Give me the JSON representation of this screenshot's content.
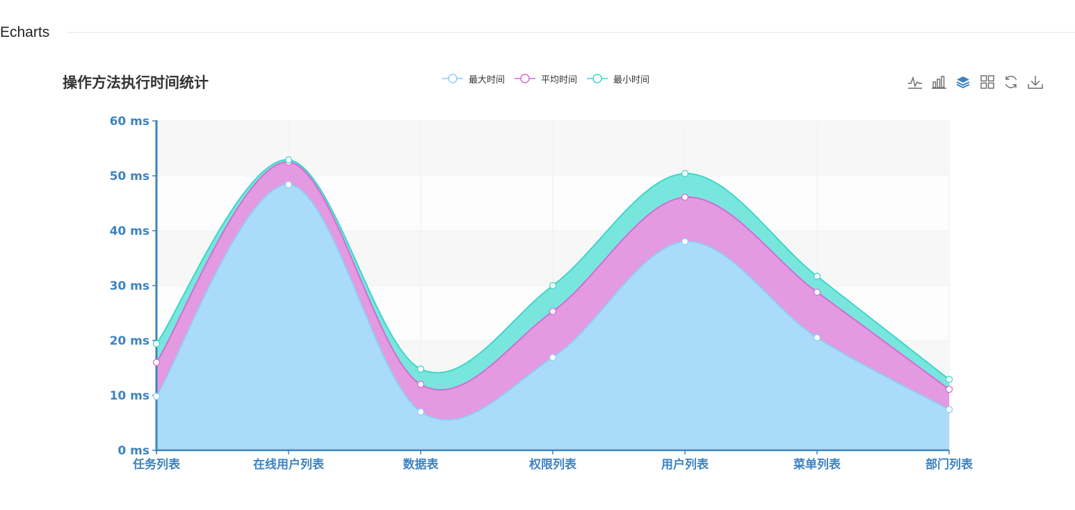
{
  "section": {
    "title": "Echarts"
  },
  "legend": [
    {
      "label": "最大时间",
      "color": "#8ccff5"
    },
    {
      "label": "平均时间",
      "color": "#d36bd4"
    },
    {
      "label": "最小时间",
      "color": "#3dd6c8"
    }
  ],
  "toolbox": [
    {
      "name": "line-chart-icon"
    },
    {
      "name": "bar-chart-icon"
    },
    {
      "name": "stack-icon"
    },
    {
      "name": "tiled-icon"
    },
    {
      "name": "restore-icon"
    },
    {
      "name": "download-icon"
    }
  ],
  "chart_data": {
    "type": "area",
    "title": "操作方法执行时间统计",
    "stacked": true,
    "categories": [
      "任务列表",
      "在线用户列表",
      "数据表",
      "权限列表",
      "用户列表",
      "菜单列表",
      "部门列表"
    ],
    "series": [
      {
        "name": "最大时间",
        "values": [
          9.8,
          48.4,
          7.0,
          16.9,
          38.0,
          20.5,
          7.4
        ],
        "color": "#8ccff5",
        "fill": "#aadcfa"
      },
      {
        "name": "平均时间",
        "values": [
          6.2,
          4.1,
          5.0,
          8.4,
          8.1,
          8.3,
          3.7
        ],
        "color": "#d36bd4",
        "fill": "#e39ae0"
      },
      {
        "name": "最小时间",
        "values": [
          3.4,
          0.4,
          2.8,
          4.7,
          4.3,
          2.9,
          1.8
        ],
        "color": "#3dd6c8",
        "fill": "#79e6dd"
      }
    ],
    "ylim": [
      0,
      60
    ],
    "yticks": [
      "0 ms",
      "10 ms",
      "20 ms",
      "30 ms",
      "40 ms",
      "50 ms",
      "60 ms"
    ],
    "grid": true,
    "legend_position": "top-center"
  }
}
